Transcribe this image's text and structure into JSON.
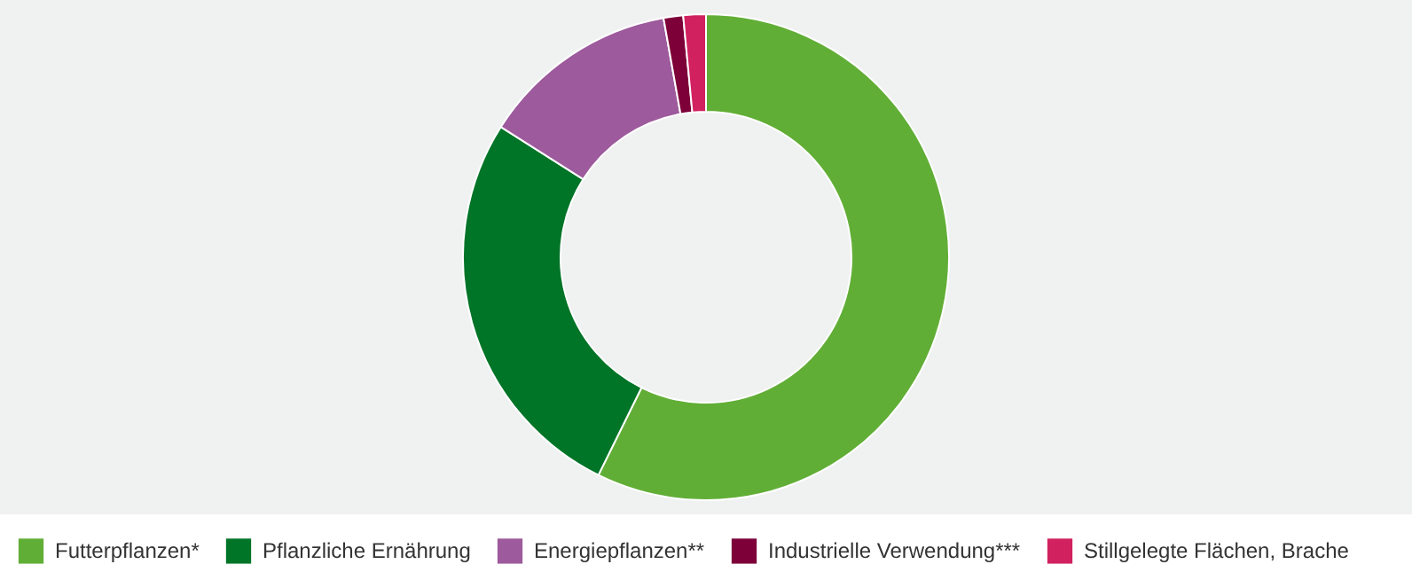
{
  "chart_data": {
    "type": "donut",
    "categories": [
      "Futterpflanzen*",
      "Pflanzliche Ernährung",
      "Energiepflanzen**",
      "Industrielle Verwendung***",
      "Stillgelegte Flächen, Brache"
    ],
    "values": [
      57.3,
      26.7,
      13.2,
      1.3,
      1.5
    ],
    "colors": [
      "#61ae36",
      "#007427",
      "#9d5a9c",
      "#7d0039",
      "#d1215f"
    ],
    "legend": "bottom"
  }
}
